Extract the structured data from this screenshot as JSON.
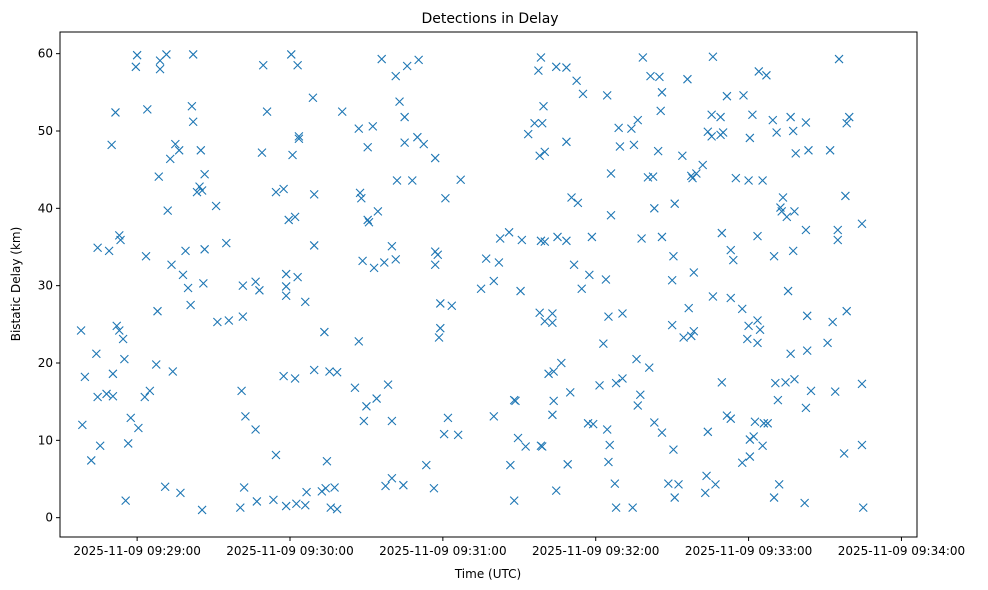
{
  "chart_data": {
    "type": "scatter",
    "title": "Detections in Delay",
    "xlabel": "Time (UTC)",
    "ylabel": "Bistatic Delay (km)",
    "x_unit": "seconds after 2025-11-09 09:28:30 UTC",
    "xlim": [
      -0.27,
      336.1
    ],
    "ylim": [
      -2.5,
      62.8
    ],
    "grid": false,
    "legend": "none",
    "marker": "x",
    "color": "#1f77b4",
    "x_ticks": [
      {
        "value": 30,
        "label": "2025-11-09 09:29:00"
      },
      {
        "value": 90,
        "label": "2025-11-09 09:30:00"
      },
      {
        "value": 150,
        "label": "2025-11-09 09:31:00"
      },
      {
        "value": 210,
        "label": "2025-11-09 09:32:00"
      },
      {
        "value": 270,
        "label": "2025-11-09 09:33:00"
      },
      {
        "value": 330,
        "label": "2025-11-09 09:34:00"
      }
    ],
    "y_ticks": [
      {
        "value": 0,
        "label": "0"
      },
      {
        "value": 10,
        "label": "10"
      },
      {
        "value": 20,
        "label": "20"
      },
      {
        "value": 30,
        "label": "30"
      },
      {
        "value": 40,
        "label": "40"
      },
      {
        "value": 50,
        "label": "50"
      },
      {
        "value": 60,
        "label": "60"
      }
    ],
    "points": [
      [
        30.0,
        59.8
      ],
      [
        29.5,
        58.3
      ],
      [
        41.5,
        59.9
      ],
      [
        39.0,
        58.0
      ],
      [
        39.0,
        59.1
      ],
      [
        52.0,
        59.9
      ],
      [
        79.5,
        58.5
      ],
      [
        90.5,
        59.9
      ],
      [
        93.0,
        58.5
      ],
      [
        136.0,
        58.4
      ],
      [
        140.5,
        59.2
      ],
      [
        126.0,
        59.3
      ],
      [
        131.5,
        57.1
      ],
      [
        188.5,
        59.5
      ],
      [
        187.5,
        57.8
      ],
      [
        194.5,
        58.3
      ],
      [
        228.5,
        59.5
      ],
      [
        256.0,
        59.6
      ],
      [
        274.0,
        57.7
      ],
      [
        277.0,
        57.2
      ],
      [
        305.5,
        59.3
      ],
      [
        21.5,
        52.4
      ],
      [
        34.0,
        52.8
      ],
      [
        51.5,
        53.2
      ],
      [
        52.0,
        51.2
      ],
      [
        81.0,
        52.5
      ],
      [
        99.0,
        54.3
      ],
      [
        110.5,
        52.5
      ],
      [
        117.0,
        50.3
      ],
      [
        120.5,
        47.9
      ],
      [
        122.5,
        50.6
      ],
      [
        133.0,
        53.8
      ],
      [
        135.0,
        51.8
      ],
      [
        140.0,
        49.2
      ],
      [
        142.5,
        48.3
      ],
      [
        189.5,
        53.2
      ],
      [
        186.0,
        51.0
      ],
      [
        183.5,
        49.6
      ],
      [
        189.0,
        51.0
      ],
      [
        198.5,
        58.2
      ],
      [
        202.5,
        56.5
      ],
      [
        205.0,
        54.8
      ],
      [
        214.5,
        54.6
      ],
      [
        219.0,
        50.4
      ],
      [
        226.5,
        51.4
      ],
      [
        231.5,
        57.1
      ],
      [
        235.0,
        57.0
      ],
      [
        236.0,
        55.0
      ],
      [
        235.5,
        52.6
      ],
      [
        246.0,
        56.7
      ],
      [
        254.0,
        49.9
      ],
      [
        255.5,
        52.1
      ],
      [
        259.0,
        51.8
      ],
      [
        261.5,
        54.5
      ],
      [
        260.0,
        49.8
      ],
      [
        268.0,
        54.6
      ],
      [
        279.5,
        51.4
      ],
      [
        281.0,
        49.8
      ],
      [
        286.5,
        51.8
      ],
      [
        308.5,
        51.0
      ],
      [
        309.5,
        51.8
      ],
      [
        20.0,
        48.2
      ],
      [
        43.0,
        46.4
      ],
      [
        45.0,
        48.3
      ],
      [
        46.5,
        47.5
      ],
      [
        55.0,
        47.5
      ],
      [
        79.0,
        47.2
      ],
      [
        91.0,
        46.9
      ],
      [
        93.5,
        49.3
      ],
      [
        93.5,
        49.0
      ],
      [
        132.0,
        43.6
      ],
      [
        135.0,
        48.5
      ],
      [
        147.0,
        46.5
      ],
      [
        188.0,
        46.8
      ],
      [
        190.0,
        47.3
      ],
      [
        198.5,
        48.6
      ],
      [
        216.0,
        44.5
      ],
      [
        219.5,
        48.0
      ],
      [
        225.0,
        48.2
      ],
      [
        224.0,
        50.3
      ],
      [
        232.5,
        44.1
      ],
      [
        234.5,
        47.4
      ],
      [
        244.0,
        46.8
      ],
      [
        249.5,
        44.5
      ],
      [
        248.0,
        43.9
      ],
      [
        252.0,
        45.6
      ],
      [
        255.5,
        49.3
      ],
      [
        259.0,
        49.5
      ],
      [
        265.0,
        43.9
      ],
      [
        270.5,
        49.1
      ],
      [
        271.5,
        52.1
      ],
      [
        275.5,
        43.6
      ],
      [
        288.5,
        47.1
      ],
      [
        293.5,
        47.5
      ],
      [
        302.0,
        47.5
      ],
      [
        287.5,
        50.0
      ],
      [
        292.5,
        51.1
      ],
      [
        38.5,
        44.1
      ],
      [
        42.0,
        39.7
      ],
      [
        53.5,
        42.1
      ],
      [
        54.5,
        42.8
      ],
      [
        55.5,
        42.3
      ],
      [
        56.5,
        44.4
      ],
      [
        61.0,
        40.3
      ],
      [
        89.5,
        38.5
      ],
      [
        84.5,
        42.1
      ],
      [
        87.5,
        42.5
      ],
      [
        92.0,
        38.9
      ],
      [
        99.5,
        41.8
      ],
      [
        117.5,
        42.0
      ],
      [
        118.0,
        41.3
      ],
      [
        120.5,
        38.5
      ],
      [
        121.0,
        38.2
      ],
      [
        124.5,
        39.6
      ],
      [
        123.0,
        32.3
      ],
      [
        127.0,
        33.0
      ],
      [
        138.0,
        43.6
      ],
      [
        151.0,
        41.3
      ],
      [
        157.0,
        43.7
      ],
      [
        167.0,
        33.5
      ],
      [
        172.0,
        33.0
      ],
      [
        172.5,
        36.1
      ],
      [
        176.0,
        36.9
      ],
      [
        181.0,
        35.9
      ],
      [
        190.0,
        35.7
      ],
      [
        195.0,
        36.3
      ],
      [
        200.5,
        41.4
      ],
      [
        203.0,
        40.7
      ],
      [
        208.5,
        36.3
      ],
      [
        216.0,
        39.1
      ],
      [
        230.5,
        44.0
      ],
      [
        233.0,
        40.0
      ],
      [
        241.0,
        40.6
      ],
      [
        247.5,
        44.2
      ],
      [
        259.5,
        36.8
      ],
      [
        263.0,
        34.6
      ],
      [
        270.0,
        43.6
      ],
      [
        273.5,
        36.4
      ],
      [
        283.5,
        41.4
      ],
      [
        282.5,
        40.1
      ],
      [
        283.0,
        39.6
      ],
      [
        285.0,
        38.9
      ],
      [
        288.0,
        39.6
      ],
      [
        292.5,
        37.2
      ],
      [
        305.0,
        37.2
      ],
      [
        308.0,
        41.6
      ],
      [
        314.5,
        38.0
      ],
      [
        14.5,
        34.9
      ],
      [
        19.0,
        34.5
      ],
      [
        23.0,
        36.5
      ],
      [
        23.5,
        35.9
      ],
      [
        33.5,
        33.8
      ],
      [
        38.0,
        26.7
      ],
      [
        43.5,
        32.7
      ],
      [
        48.0,
        31.4
      ],
      [
        49.0,
        34.5
      ],
      [
        50.0,
        29.7
      ],
      [
        51.0,
        27.5
      ],
      [
        56.5,
        34.7
      ],
      [
        56.0,
        30.3
      ],
      [
        65.0,
        35.5
      ],
      [
        71.5,
        30.0
      ],
      [
        71.5,
        26.0
      ],
      [
        78.0,
        29.4
      ],
      [
        76.5,
        30.5
      ],
      [
        88.5,
        31.5
      ],
      [
        88.5,
        29.9
      ],
      [
        88.5,
        28.7
      ],
      [
        93.0,
        31.1
      ],
      [
        96.0,
        27.9
      ],
      [
        99.5,
        35.2
      ],
      [
        118.5,
        33.2
      ],
      [
        130.0,
        35.1
      ],
      [
        131.5,
        33.4
      ],
      [
        147.0,
        32.7
      ],
      [
        147.0,
        34.4
      ],
      [
        148.0,
        34.0
      ],
      [
        149.0,
        27.7
      ],
      [
        149.0,
        24.5
      ],
      [
        148.5,
        23.3
      ],
      [
        153.5,
        27.4
      ],
      [
        165.0,
        29.6
      ],
      [
        170.0,
        30.6
      ],
      [
        180.5,
        29.3
      ],
      [
        188.0,
        26.5
      ],
      [
        188.5,
        35.8
      ],
      [
        193.0,
        26.4
      ],
      [
        193.0,
        25.2
      ],
      [
        198.5,
        35.8
      ],
      [
        201.5,
        32.7
      ],
      [
        204.5,
        29.6
      ],
      [
        207.5,
        31.4
      ],
      [
        214.0,
        30.8
      ],
      [
        215.0,
        26.0
      ],
      [
        213.0,
        22.5
      ],
      [
        220.5,
        26.4
      ],
      [
        228.0,
        36.1
      ],
      [
        236.0,
        36.3
      ],
      [
        240.5,
        33.8
      ],
      [
        240.0,
        30.7
      ],
      [
        246.5,
        27.1
      ],
      [
        248.5,
        31.7
      ],
      [
        256.0,
        28.6
      ],
      [
        263.0,
        28.4
      ],
      [
        264.0,
        33.3
      ],
      [
        267.5,
        27.0
      ],
      [
        270.0,
        24.8
      ],
      [
        273.5,
        25.5
      ],
      [
        274.5,
        24.3
      ],
      [
        280.0,
        33.8
      ],
      [
        285.5,
        29.3
      ],
      [
        287.5,
        34.5
      ],
      [
        293.0,
        26.1
      ],
      [
        293.0,
        21.6
      ],
      [
        305.0,
        35.9
      ],
      [
        308.5,
        26.7
      ],
      [
        8.0,
        24.2
      ],
      [
        8.5,
        12.0
      ],
      [
        9.5,
        18.2
      ],
      [
        12.0,
        7.4
      ],
      [
        14.0,
        21.2
      ],
      [
        14.5,
        15.6
      ],
      [
        15.5,
        9.3
      ],
      [
        18.0,
        16.0
      ],
      [
        20.5,
        18.6
      ],
      [
        22.0,
        24.8
      ],
      [
        23.0,
        24.2
      ],
      [
        24.5,
        23.1
      ],
      [
        25.0,
        20.5
      ],
      [
        26.5,
        9.6
      ],
      [
        27.5,
        12.9
      ],
      [
        30.5,
        11.6
      ],
      [
        33.0,
        15.6
      ],
      [
        35.0,
        16.4
      ],
      [
        37.5,
        19.8
      ],
      [
        44.0,
        18.9
      ],
      [
        61.5,
        25.3
      ],
      [
        66.0,
        25.5
      ],
      [
        71.0,
        16.4
      ],
      [
        72.5,
        13.1
      ],
      [
        76.5,
        11.4
      ],
      [
        87.5,
        18.3
      ],
      [
        92.0,
        18.0
      ],
      [
        99.5,
        19.1
      ],
      [
        105.5,
        18.9
      ],
      [
        103.5,
        24.0
      ],
      [
        108.5,
        18.8
      ],
      [
        115.5,
        16.8
      ],
      [
        117.0,
        22.8
      ],
      [
        119.0,
        12.5
      ],
      [
        120.0,
        14.4
      ],
      [
        124.0,
        15.4
      ],
      [
        128.5,
        17.2
      ],
      [
        130.0,
        12.5
      ],
      [
        150.5,
        10.8
      ],
      [
        152.0,
        12.9
      ],
      [
        156.0,
        10.7
      ],
      [
        170.0,
        13.1
      ],
      [
        178.0,
        15.2
      ],
      [
        178.5,
        15.1
      ],
      [
        190.0,
        25.4
      ],
      [
        191.5,
        18.6
      ],
      [
        193.5,
        15.1
      ],
      [
        193.0,
        13.3
      ],
      [
        193.5,
        18.9
      ],
      [
        196.5,
        20.0
      ],
      [
        200.0,
        16.2
      ],
      [
        207.0,
        12.2
      ],
      [
        209.0,
        12.1
      ],
      [
        211.5,
        17.1
      ],
      [
        214.5,
        11.4
      ],
      [
        215.5,
        9.4
      ],
      [
        218.0,
        17.4
      ],
      [
        220.5,
        18.0
      ],
      [
        226.5,
        14.5
      ],
      [
        227.5,
        15.9
      ],
      [
        226.0,
        20.5
      ],
      [
        231.0,
        19.4
      ],
      [
        233.0,
        12.3
      ],
      [
        236.0,
        11.0
      ],
      [
        240.0,
        24.9
      ],
      [
        244.5,
        23.3
      ],
      [
        247.5,
        23.5
      ],
      [
        248.5,
        24.1
      ],
      [
        254.0,
        11.1
      ],
      [
        259.5,
        17.5
      ],
      [
        261.5,
        13.2
      ],
      [
        263.0,
        12.8
      ],
      [
        269.5,
        23.1
      ],
      [
        270.5,
        10.1
      ],
      [
        273.5,
        22.6
      ],
      [
        275.5,
        9.3
      ],
      [
        276.0,
        12.2
      ],
      [
        277.5,
        12.2
      ],
      [
        280.5,
        17.4
      ],
      [
        281.5,
        15.2
      ],
      [
        284.5,
        17.5
      ],
      [
        286.5,
        21.2
      ],
      [
        288.0,
        17.9
      ],
      [
        292.5,
        14.2
      ],
      [
        294.5,
        16.4
      ],
      [
        301.0,
        22.6
      ],
      [
        303.0,
        25.3
      ],
      [
        304.0,
        16.3
      ],
      [
        314.5,
        17.3
      ],
      [
        20.5,
        15.7
      ],
      [
        25.5,
        2.2
      ],
      [
        41.0,
        4.0
      ],
      [
        47.0,
        3.2
      ],
      [
        55.5,
        1.0
      ],
      [
        70.5,
        1.3
      ],
      [
        72.0,
        3.9
      ],
      [
        77.0,
        2.1
      ],
      [
        83.5,
        2.3
      ],
      [
        84.5,
        8.1
      ],
      [
        88.5,
        1.5
      ],
      [
        92.5,
        1.8
      ],
      [
        96.5,
        3.3
      ],
      [
        96.0,
        1.6
      ],
      [
        102.5,
        3.4
      ],
      [
        104.0,
        3.8
      ],
      [
        104.5,
        7.3
      ],
      [
        106.0,
        1.3
      ],
      [
        107.5,
        3.9
      ],
      [
        108.5,
        1.1
      ],
      [
        127.5,
        4.1
      ],
      [
        130.0,
        5.1
      ],
      [
        134.5,
        4.2
      ],
      [
        143.5,
        6.8
      ],
      [
        146.5,
        3.8
      ],
      [
        176.5,
        6.8
      ],
      [
        178.0,
        2.2
      ],
      [
        179.5,
        10.3
      ],
      [
        182.5,
        9.2
      ],
      [
        188.5,
        9.3
      ],
      [
        189.0,
        9.2
      ],
      [
        194.5,
        3.5
      ],
      [
        199.0,
        6.9
      ],
      [
        215.0,
        7.2
      ],
      [
        217.5,
        4.4
      ],
      [
        224.5,
        1.3
      ],
      [
        238.5,
        4.4
      ],
      [
        242.5,
        4.3
      ],
      [
        240.5,
        8.8
      ],
      [
        241.0,
        2.6
      ],
      [
        253.5,
        5.4
      ],
      [
        253.0,
        3.2
      ],
      [
        257.0,
        4.3
      ],
      [
        267.5,
        7.1
      ],
      [
        270.5,
        7.9
      ],
      [
        272.5,
        12.4
      ],
      [
        272.0,
        10.5
      ],
      [
        280.0,
        2.6
      ],
      [
        282.0,
        4.3
      ],
      [
        292.0,
        1.9
      ],
      [
        307.5,
        8.3
      ],
      [
        314.5,
        9.4
      ],
      [
        315.0,
        1.3
      ],
      [
        218.0,
        1.3
      ]
    ]
  }
}
